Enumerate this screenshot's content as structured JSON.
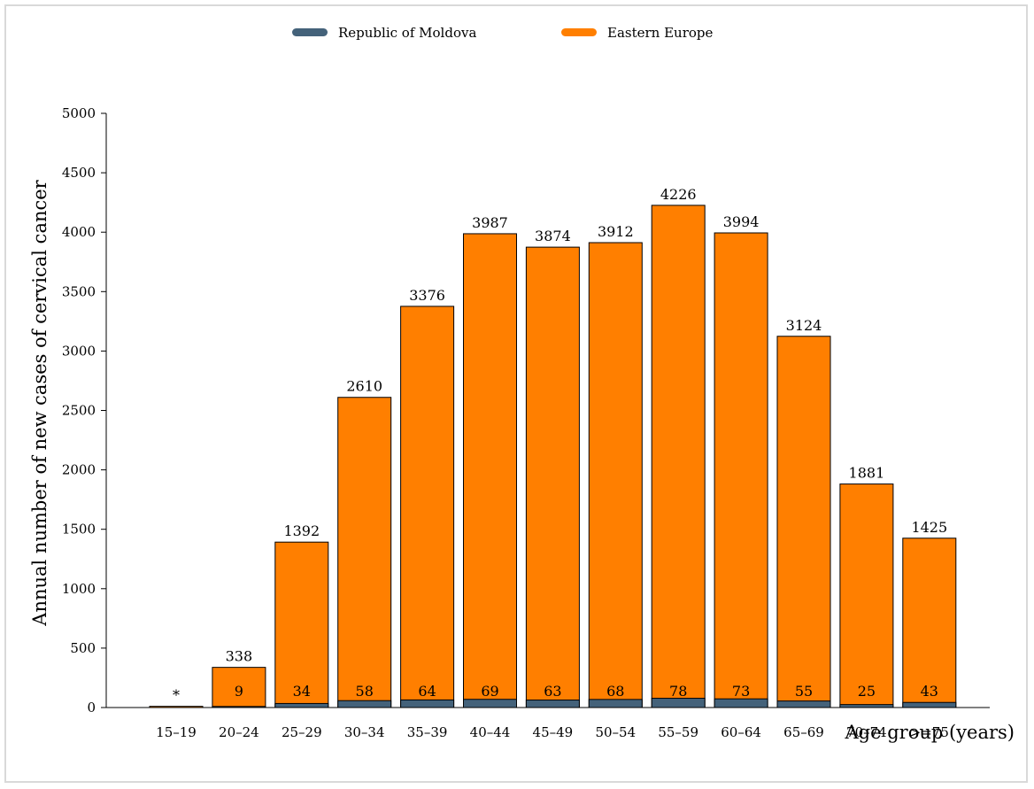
{
  "chart_data": {
    "type": "bar",
    "categories": [
      "15–19",
      "20–24",
      "25–29",
      "30–34",
      "35–39",
      "40–44",
      "45–49",
      "50–54",
      "55–59",
      "60–64",
      "65–69",
      "70–74",
      ">=75"
    ],
    "series": [
      {
        "name": "Eastern Europe",
        "color": "#ff7f00",
        "values": [
          10,
          338,
          1392,
          2610,
          3376,
          3987,
          3874,
          3912,
          4226,
          3994,
          3124,
          1881,
          1425
        ],
        "labels": [
          "*",
          "338",
          "1392",
          "2610",
          "3376",
          "3987",
          "3874",
          "3912",
          "4226",
          "3994",
          "3124",
          "1881",
          "1425"
        ]
      },
      {
        "name": "Republic of Moldova",
        "color": "#44627a",
        "values": [
          0,
          9,
          34,
          58,
          64,
          69,
          63,
          68,
          78,
          73,
          55,
          25,
          43
        ],
        "labels": [
          "",
          "9",
          "34",
          "58",
          "64",
          "69",
          "63",
          "68",
          "78",
          "73",
          "55",
          "25",
          "43"
        ]
      }
    ],
    "xlabel": "Age group (years)",
    "ylabel": "Annual number of new cases of cervical cancer",
    "ylim": [
      0,
      5000
    ],
    "yticks": [
      0,
      500,
      1000,
      1500,
      2000,
      2500,
      3000,
      3500,
      4000,
      4500,
      5000
    ],
    "legend_position": "top-center",
    "grid": false
  }
}
